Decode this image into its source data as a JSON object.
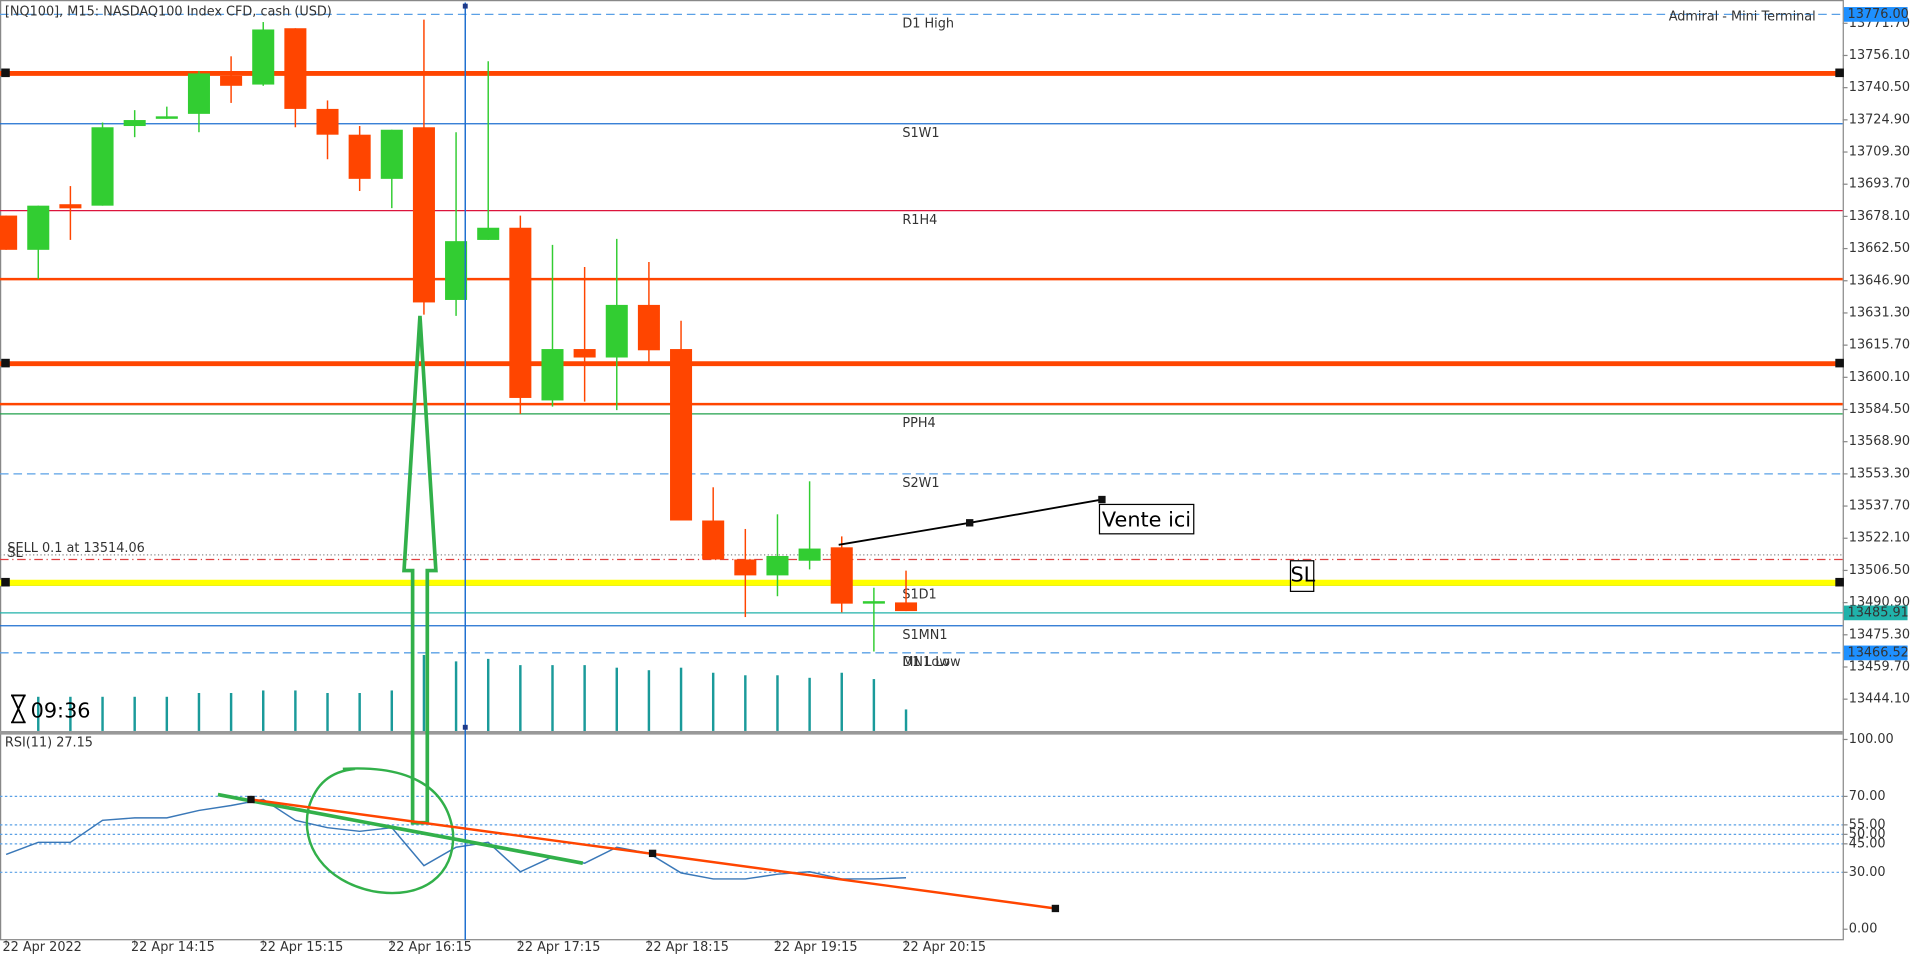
{
  "header": {
    "symbol": "[NQ100], M15:  NASDAQ100 Index CFD, cash (USD)",
    "terminal": "Admiral - Mini Terminal",
    "countdown": "09:36",
    "entry_note": "Vente ici",
    "sl_note": "SL"
  },
  "chart_data": [
    {
      "type": "candlestick",
      "categories": [
        "22 Apr 2022",
        null,
        null,
        null,
        "22 Apr 14:15",
        null,
        null,
        null,
        "22 Apr 15:15",
        null,
        null,
        null,
        "22 Apr 16:15",
        null,
        null,
        null,
        "22 Apr 17:15",
        null,
        null,
        null,
        "22 Apr 18:15",
        null,
        null,
        null,
        "22 Apr 19:15",
        null,
        null,
        null,
        "22 Apr 20:15"
      ],
      "open": [
        13678.5,
        13661.9,
        13684.0,
        13683.3,
        13721.9,
        13725.4,
        13727.8,
        13746.2,
        13742.0,
        13769.3,
        13730.2,
        13717.7,
        13696.3,
        13721.3,
        13637.6,
        13666.7,
        13672.6,
        13588.9,
        13613.8,
        13609.7,
        13635.2,
        13613.8,
        13530.7,
        13511.8,
        13504.1,
        13511.2,
        13517.7,
        13490.4,
        13491.0
      ],
      "high": [
        13678.5,
        13683.3,
        13692.8,
        13723.6,
        13729.6,
        13731.3,
        13748.6,
        13755.7,
        13772.3,
        13769.3,
        13734.3,
        13721.9,
        13720.1,
        13773.5,
        13718.9,
        13753.3,
        13678.5,
        13664.3,
        13653.6,
        13667.2,
        13656.0,
        13627.5,
        13546.8,
        13526.6,
        13533.7,
        13549.7,
        13523.0,
        13498.1,
        13506.4
      ],
      "low": [
        13661.9,
        13647.7,
        13666.7,
        13683.3,
        13716.5,
        13725.4,
        13718.9,
        13733.1,
        13741.4,
        13721.3,
        13705.8,
        13690.4,
        13682.1,
        13630.5,
        13629.9,
        13666.7,
        13582.4,
        13585.9,
        13588.3,
        13584.2,
        13607.3,
        13530.7,
        13511.8,
        13483.9,
        13494.0,
        13507.0,
        13486.2,
        13467.2,
        13486.8
      ],
      "close": [
        13661.9,
        13683.3,
        13682.0,
        13721.3,
        13724.8,
        13726.6,
        13747.4,
        13741.4,
        13768.7,
        13730.2,
        13717.7,
        13696.3,
        13720.1,
        13636.4,
        13666.1,
        13672.6,
        13590.1,
        13613.8,
        13609.7,
        13635.2,
        13613.2,
        13530.7,
        13511.8,
        13504.1,
        13513.5,
        13517.1,
        13490.4,
        13491.6,
        13486.8
      ],
      "volume": [
        null,
        1080,
        1080,
        1080,
        1080,
        1080,
        1200,
        1200,
        1280,
        1280,
        1200,
        1200,
        1280,
        2400,
        2200,
        2280,
        2080,
        2080,
        2080,
        2000,
        1920,
        2000,
        1840,
        1760,
        1760,
        1680,
        1840,
        1640,
        680
      ],
      "up_color": "#32cd32",
      "down_color": "#ff4500",
      "volume_color": "#1a9a9a",
      "ylim": [
        13428.7,
        13781.8
      ],
      "yticks": [
        {
          "value": 13771.7,
          "label": "13771.70"
        },
        {
          "value": 13756.1,
          "label": "13756.10"
        },
        {
          "value": 13740.5,
          "label": "13740.50"
        },
        {
          "value": 13724.9,
          "label": "13724.90"
        },
        {
          "value": 13709.3,
          "label": "13709.30"
        },
        {
          "value": 13693.7,
          "label": "13693.70"
        },
        {
          "value": 13678.1,
          "label": "13678.10"
        },
        {
          "value": 13662.5,
          "label": "13662.50"
        },
        {
          "value": 13646.9,
          "label": "13646.90"
        },
        {
          "value": 13631.3,
          "label": "13631.30"
        },
        {
          "value": 13615.7,
          "label": "13615.70"
        },
        {
          "value": 13600.1,
          "label": "13600.10"
        },
        {
          "value": 13584.5,
          "label": "13584.50"
        },
        {
          "value": 13568.9,
          "label": "13568.90"
        },
        {
          "value": 13553.3,
          "label": "13553.30"
        },
        {
          "value": 13537.7,
          "label": "13537.70"
        },
        {
          "value": 13522.1,
          "label": "13522.10"
        },
        {
          "value": 13506.5,
          "label": "13506.50"
        },
        {
          "value": 13490.9,
          "label": "13490.90"
        },
        {
          "value": 13475.3,
          "label": "13475.30"
        },
        {
          "value": 13459.7,
          "label": "13459.70"
        },
        {
          "value": 13444.1,
          "label": "13444.10"
        }
      ],
      "levels": [
        {
          "name": "D1 High",
          "value": 13776,
          "color": "#5aa0e6",
          "style": "dashed",
          "width": 1
        },
        {
          "value": 13747.4,
          "color": "#ff4500",
          "style": "solid",
          "width": 4
        },
        {
          "name": "S1W1",
          "value": 13723.0,
          "color": "#1e6fd0",
          "style": "solid",
          "width": 1
        },
        {
          "name": "R1H4",
          "value": 13680.9,
          "color": "#dc143c",
          "style": "solid",
          "width": 1
        },
        {
          "value": 13647.7,
          "color": "#ff4500",
          "style": "solid",
          "width": 2
        },
        {
          "value": 13606.7,
          "color": "#ff4500",
          "style": "solid",
          "width": 4
        },
        {
          "value": 13587.1,
          "color": "#ff4500",
          "style": "solid",
          "width": 2
        },
        {
          "name": "PPH4",
          "value": 13582.4,
          "color": "#22a04b",
          "style": "solid",
          "width": 1
        },
        {
          "name": "S2W1",
          "value": 13553.3,
          "color": "#5aa0e6",
          "style": "dashed",
          "width": 1
        },
        {
          "name": "SELL 0.1 at 13514.06",
          "value": 13514.06,
          "color": "#888888",
          "style": "dotted",
          "width": 1,
          "label_align": "left"
        },
        {
          "name": "SL",
          "value": 13511.8,
          "color": "#e04040",
          "style": "dashdot",
          "width": 1,
          "label_align": "left"
        },
        {
          "name": "S1D1",
          "value": 13499.3,
          "color": "#1e6fd0",
          "style": "solid",
          "width": 1
        },
        {
          "value": 13500.5,
          "color": "#ffff00",
          "style": "solid",
          "width": 5
        },
        {
          "value": 13485.91,
          "color": "#20b2aa",
          "style": "solid",
          "width": 1
        },
        {
          "name": "S1MN1",
          "value": 13479.7,
          "color": "#1e6fd0",
          "style": "solid",
          "width": 1
        },
        {
          "name": "D1 Low",
          "value": 13466.52,
          "color": "#5aa0e6",
          "style": "dashed",
          "width": 1
        },
        {
          "name": "MN1 Low",
          "value": 13466.52,
          "color": "#5aa0e6",
          "style": "dashed",
          "width": 1
        }
      ],
      "price_markers": [
        {
          "value": 13776,
          "label": "13776.00",
          "color": "#1e90ff"
        },
        {
          "value": 13485.91,
          "color": "#20b2aa"
        },
        {
          "value": 13466.52,
          "color": "#1e90ff"
        }
      ]
    },
    {
      "type": "line",
      "title": "RSI(11) 27.15",
      "color": "#3a78b8",
      "values": [
        39.4,
        45.8,
        45.8,
        57.4,
        58.7,
        58.7,
        62.6,
        65.2,
        68.4,
        57.4,
        53.5,
        51.6,
        53.5,
        33.5,
        43.2,
        45.8,
        30.3,
        38.1,
        34.8,
        43.2,
        40.0,
        29.7,
        26.5,
        26.5,
        29.0,
        30.3,
        26.5,
        26.5,
        27.15
      ],
      "ylim": [
        -3.9,
        103.2
      ],
      "yticks": [
        {
          "value": 100,
          "label": "100.00"
        },
        {
          "value": 70,
          "label": "70.00"
        },
        {
          "value": 55,
          "label": "55.00"
        },
        {
          "value": 50,
          "label": "50.00"
        },
        {
          "value": 45,
          "label": "45.00"
        },
        {
          "value": 30,
          "label": "30.00"
        },
        {
          "value": 0,
          "label": "0.00"
        }
      ]
    }
  ]
}
